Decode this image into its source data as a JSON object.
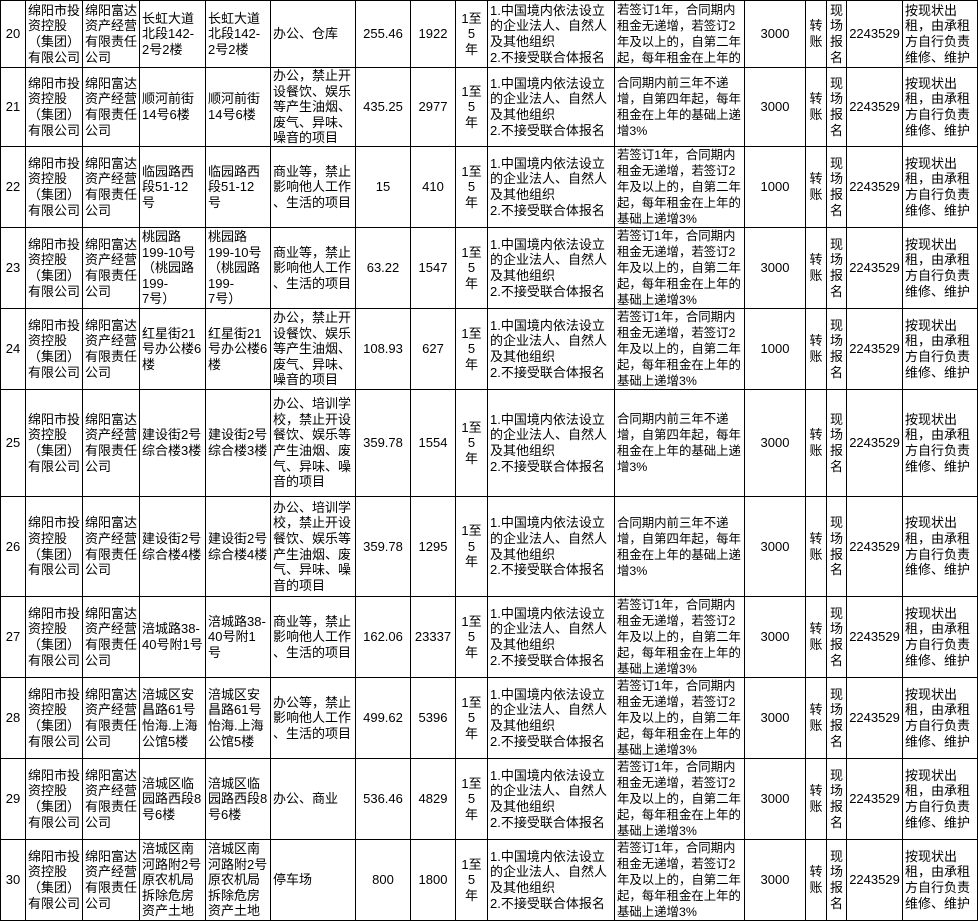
{
  "page": {
    "background": "#ffffff",
    "text_color": "#000000",
    "border_color": "#000000"
  },
  "table": {
    "rows": [
      {
        "num": "20",
        "owner": "绵阳市投\n资控股\n（集团）\n有限公司",
        "operator": "绵阳富达\n资产经营\n有限责任\n公司",
        "name": "长虹大道\n北段142-\n2号2楼",
        "location": "长虹大道\n北段142-\n2号2楼",
        "usage": "办公、仓库",
        "area": "255.46",
        "price": "1922",
        "term": "1至5\n年",
        "qualification": "1.中国境内依法设立\n的企业法人、自然人\n及其他组织\n2.不接受联合体报名",
        "escalation": "若签订1年，合同期内\n租金无递增，若签订2\n年及以上的，自第二年\n起，每年租金在上年的",
        "deposit": "3000",
        "payment": "转\n账",
        "registration": "现\n场\n报\n名",
        "phone": "2243529",
        "note": "按现状出\n租，由承租\n方自行负责\n维修、维护"
      },
      {
        "num": "21",
        "owner": "绵阳市投\n资控股\n（集团）\n有限公司",
        "operator": "绵阳富达\n资产经营\n有限责任\n公司",
        "name": "顺河前街\n14号6楼",
        "location": "顺河前街\n14号6楼",
        "usage": "办公，禁止开\n设餐饮、娱乐\n等产生油烟、\n废气、异味、\n噪音的项目",
        "area": "435.25",
        "price": "2977",
        "term": "1至5\n年",
        "qualification": "1.中国境内依法设立\n的企业法人、自然人\n及其他组织\n2.不接受联合体报名",
        "escalation": "合同期内前三年不递\n增，自第四年起，每年\n租金在上年的基础上递\n增3%",
        "deposit": "3000",
        "payment": "转\n账",
        "registration": "现\n场\n报\n名",
        "phone": "2243529",
        "note": "按现状出\n租，由承租\n方自行负责\n维修、维护"
      },
      {
        "num": "22",
        "owner": "绵阳市投\n资控股\n（集团）\n有限公司",
        "operator": "绵阳富达\n资产经营\n有限责任\n公司",
        "name": "临园路西\n段51-12\n号",
        "location": "临园路西\n段51-12\n号",
        "usage": "商业等，禁止\n影响他人工作\n、生活的项目",
        "area": "15",
        "price": "410",
        "term": "1至5\n年",
        "qualification": "1.中国境内依法设立\n的企业法人、自然人\n及其他组织\n2.不接受联合体报名",
        "escalation": "若签订1年，合同期内\n租金无递增，若签订2\n年及以上的，自第二年\n起，每年租金在上年的\n基础上递增3%",
        "deposit": "1000",
        "payment": "转\n账",
        "registration": "现\n场\n报\n名",
        "phone": "2243529",
        "note": "按现状出\n租，由承租\n方自行负责\n维修、维护"
      },
      {
        "num": "23",
        "owner": "绵阳市投\n资控股\n（集团）\n有限公司",
        "operator": "绵阳富达\n资产经营\n有限责任\n公司",
        "name": "桃园路\n199-10号\n（桃园路\n199-\n7号）",
        "location": "桃园路\n199-10号\n（桃园路\n199-\n7号）",
        "usage": "商业等，禁止\n影响他人工作\n、生活的项目",
        "area": "63.22",
        "price": "1547",
        "term": "1至5\n年",
        "qualification": "1.中国境内依法设立\n的企业法人、自然人\n及其他组织\n2.不接受联合体报名",
        "escalation": "若签订1年，合同期内\n租金无递增，若签订2\n年及以上的，自第二年\n起，每年租金在上年的\n基础上递增3%",
        "deposit": "3000",
        "payment": "转\n账",
        "registration": "现\n场\n报\n名",
        "phone": "2243529",
        "note": "按现状出\n租，由承租\n方自行负责\n维修、维护"
      },
      {
        "num": "24",
        "owner": "绵阳市投\n资控股\n（集团）\n有限公司",
        "operator": "绵阳富达\n资产经营\n有限责任\n公司",
        "name": "红星街21\n号办公楼6\n楼",
        "location": "红星街21\n号办公楼6\n楼",
        "usage": "办公，禁止开\n设餐饮、娱乐\n等产生油烟、\n废气、异味、\n噪音的项目",
        "area": "108.93",
        "price": "627",
        "term": "1至5\n年",
        "qualification": "1.中国境内依法设立\n的企业法人、自然人\n及其他组织\n2.不接受联合体报名",
        "escalation": "若签订1年，合同期内\n租金无递增，若签订2\n年及以上的，自第二年\n起，每年租金在上年的\n基础上递增3%",
        "deposit": "1000",
        "payment": "转\n账",
        "registration": "现\n场\n报\n名",
        "phone": "2243529",
        "note": "按现状出\n租，由承租\n方自行负责\n维修、维护"
      },
      {
        "num": "25",
        "owner": "绵阳市投\n资控股\n（集团）\n有限公司",
        "operator": "绵阳富达\n资产经营\n有限责任\n公司",
        "name": "建设街2号\n综合楼3楼",
        "location": "建设街2号\n综合楼3楼",
        "usage": "办公、培训学\n校，禁止开设\n餐饮、娱乐等\n产生油烟、废\n气、异味、噪\n音的项目",
        "area": "359.78",
        "price": "1554",
        "term": "1至5\n年",
        "qualification": "1.中国境内依法设立\n的企业法人、自然人\n及其他组织\n2.不接受联合体报名",
        "escalation": "合同期内前三年不递\n增，自第四年起，每年\n租金在上年的基础上递\n增3%",
        "deposit": "3000",
        "payment": "转\n账",
        "registration": "现\n场\n报\n名",
        "phone": "2243529",
        "note": "按现状出\n租，由承租\n方自行负责\n维修、维护"
      },
      {
        "num": "26",
        "owner": "绵阳市投\n资控股\n（集团）\n有限公司",
        "operator": "绵阳富达\n资产经营\n有限责任\n公司",
        "name": "建设街2号\n综合楼4楼",
        "location": "建设街2号\n综合楼4楼",
        "usage": "办公、培训学\n校，禁止开设\n餐饮、娱乐等\n产生油烟、废\n气、异味、噪\n音的项目",
        "area": "359.78",
        "price": "1295",
        "term": "1至5\n年",
        "qualification": "1.中国境内依法设立\n的企业法人、自然人\n及其他组织\n2.不接受联合体报名",
        "escalation": "合同期内前三年不递\n增，自第四年起，每年\n租金在上年的基础上递\n增3%",
        "deposit": "3000",
        "payment": "转\n账",
        "registration": "现\n场\n报\n名",
        "phone": "2243529",
        "note": "按现状出\n租，由承租\n方自行负责\n维修、维护"
      },
      {
        "num": "27",
        "owner": "绵阳市投\n资控股\n（集团）\n有限公司",
        "operator": "绵阳富达\n资产经营\n有限责任\n公司",
        "name": "涪城路38-\n40号附1号",
        "location": "涪城路38-\n40号附1号",
        "usage": "商业等，禁止\n影响他人工作\n、生活的项目",
        "area": "162.06",
        "price": "23337",
        "term": "1至5\n年",
        "qualification": "1.中国境内依法设立\n的企业法人、自然人\n及其他组织\n2.不接受联合体报名",
        "escalation": "若签订1年，合同期内\n租金无递增，若签订2\n年及以上的，自第二年\n起，每年租金在上年的\n基础上递增3%",
        "deposit": "3000",
        "payment": "转\n账",
        "registration": "现\n场\n报\n名",
        "phone": "2243529",
        "note": "按现状出\n租，由承租\n方自行负责\n维修、维护"
      },
      {
        "num": "28",
        "owner": "绵阳市投\n资控股\n（集团）\n有限公司",
        "operator": "绵阳富达\n资产经营\n有限责任\n公司",
        "name": "涪城区安\n昌路61号\n怡海.上海\n公馆5楼",
        "location": "涪城区安\n昌路61号\n怡海.上海\n公馆5楼",
        "usage": "办公等，禁止\n影响他人工作\n、生活的项目",
        "area": "499.62",
        "price": "5396",
        "term": "1至5\n年",
        "qualification": "1.中国境内依法设立\n的企业法人、自然人\n及其他组织\n2.不接受联合体报名",
        "escalation": "若签订1年，合同期内\n租金无递增，若签订2\n年及以上的，自第二年\n起，每年租金在上年的\n基础上递增3%",
        "deposit": "3000",
        "payment": "转\n账",
        "registration": "现\n场\n报\n名",
        "phone": "2243529",
        "note": "按现状出\n租，由承租\n方自行负责\n维修、维护"
      },
      {
        "num": "29",
        "owner": "绵阳市投\n资控股\n（集团）\n有限公司",
        "operator": "绵阳富达\n资产经营\n有限责任\n公司",
        "name": "涪城区临\n园路西段8\n号6楼",
        "location": "涪城区临\n园路西段8\n号6楼",
        "usage": "办公、商业",
        "area": "536.46",
        "price": "4829",
        "term": "1至5\n年",
        "qualification": "1.中国境内依法设立\n的企业法人、自然人\n及其他组织\n2.不接受联合体报名",
        "escalation": "若签订1年，合同期内\n租金无递增，若签订2\n年及以上的，自第二年\n起，每年租金在上年的\n基础上递增3%",
        "deposit": "3000",
        "payment": "转\n账",
        "registration": "现\n场\n报\n名",
        "phone": "2243529",
        "note": "按现状出\n租，由承租\n方自行负责\n维修、维护"
      },
      {
        "num": "30",
        "owner": "绵阳市投\n资控股\n（集团）\n有限公司",
        "operator": "绵阳富达\n资产经营\n有限责任\n公司",
        "name": "涪城区南\n河路附2号\n原农机局\n拆除危房\n资产土地",
        "location": "涪城区南\n河路附2号\n原农机局\n拆除危房\n资产土地",
        "usage": "停车场",
        "area": "800",
        "price": "1800",
        "term": "1至5\n年",
        "qualification": "1.中国境内依法设立\n的企业法人、自然人\n及其他组织\n2.不接受联合体报名",
        "escalation": "若签订1年，合同期内\n租金无递增，若签订2\n年及以上的，自第二年\n起，每年租金在上年的\n基础上递增3%",
        "deposit": "3000",
        "payment": "转\n账",
        "registration": "现\n场\n报\n名",
        "phone": "2243529",
        "note": "按现状出\n租，由承租\n方自行负责\n维修、维护"
      }
    ]
  }
}
